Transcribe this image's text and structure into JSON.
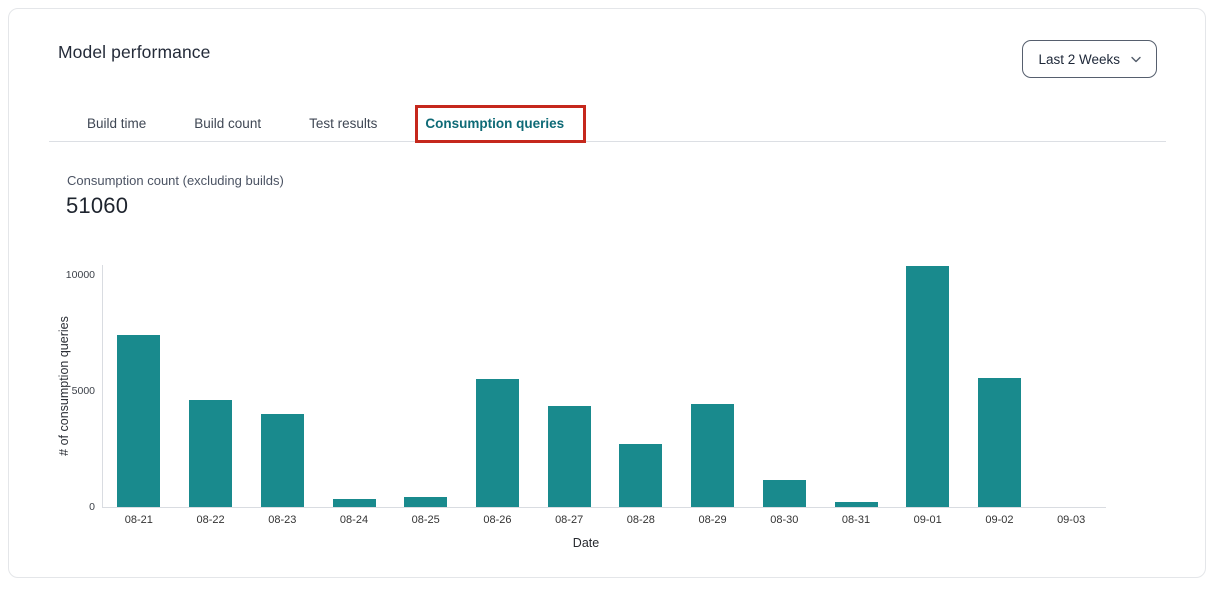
{
  "header": {
    "title": "Model performance"
  },
  "range_selector": {
    "value": "Last 2 Weeks"
  },
  "tabs": {
    "items": [
      {
        "label": "Build time",
        "active": false
      },
      {
        "label": "Build count",
        "active": false
      },
      {
        "label": "Test results",
        "active": false
      },
      {
        "label": "Consumption queries",
        "active": true
      }
    ]
  },
  "metric": {
    "label": "Consumption count (excluding builds)",
    "value": "51060"
  },
  "chart_data": {
    "type": "bar",
    "title": "",
    "categories": [
      "08-21",
      "08-22",
      "08-23",
      "08-24",
      "08-25",
      "08-26",
      "08-27",
      "08-28",
      "08-29",
      "08-30",
      "08-31",
      "09-01",
      "09-02",
      "09-03"
    ],
    "values": [
      7400,
      4600,
      4000,
      330,
      430,
      5500,
      4350,
      2700,
      4450,
      1150,
      200,
      10400,
      5550,
      0
    ],
    "xlabel": "Date",
    "ylabel": "# of consumption queries",
    "ylim": [
      0,
      10470
    ],
    "yticks": [
      0,
      5000,
      10000
    ],
    "bar_color": "#198a8d",
    "grid": false,
    "legend": "none",
    "total": 51060
  },
  "colors": {
    "accent_teal": "#0e6a76",
    "bar_teal": "#198a8d",
    "annotation_red": "#c5281c"
  }
}
